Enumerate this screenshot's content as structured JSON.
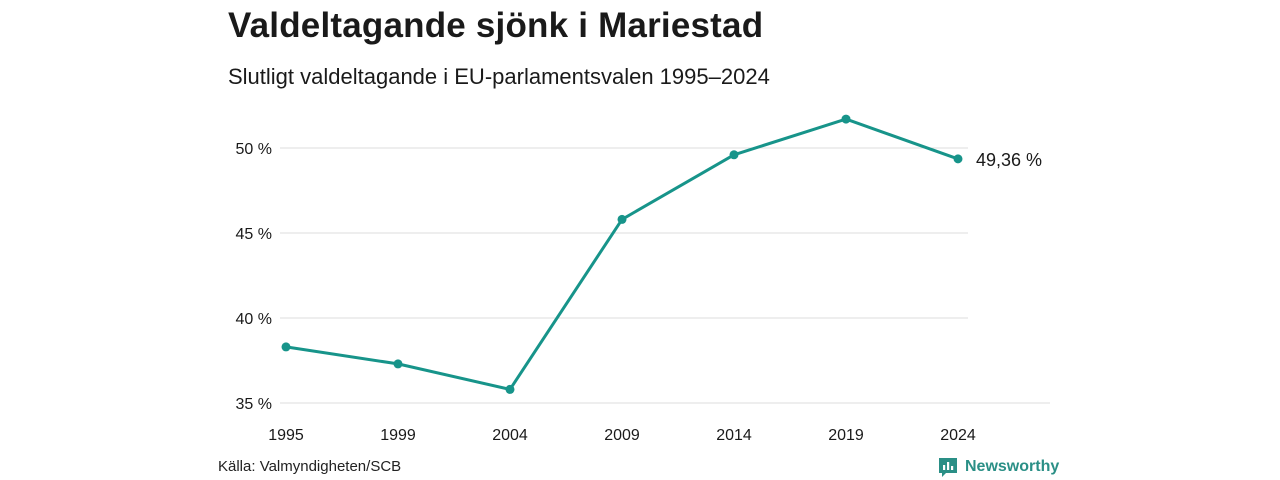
{
  "title": "Valdeltagande sjönk i Mariestad",
  "subtitle": "Slutligt valdeltagande i EU-parlamentsvalen 1995–2024",
  "source": "Källa: Valmyndigheten/SCB",
  "brand": {
    "name": "Newsworthy",
    "icon": "newsworthy-logo-icon"
  },
  "colors": {
    "line": "#17948a",
    "grid": "#dcdcdc",
    "text": "#1a1a1a",
    "brand": "#2a8f86"
  },
  "chart_data": {
    "type": "line",
    "title": "Valdeltagande sjönk i Mariestad",
    "subtitle": "Slutligt valdeltagande i EU-parlamentsvalen 1995–2024",
    "x": [
      "1995",
      "1999",
      "2004",
      "2009",
      "2014",
      "2019",
      "2024"
    ],
    "series": [
      {
        "values": [
          38.3,
          37.3,
          35.8,
          45.8,
          49.6,
          51.7,
          49.36
        ]
      }
    ],
    "ylim": [
      35,
      52
    ],
    "yticks": [
      35,
      40,
      45,
      50
    ],
    "ytick_labels": [
      "35 %",
      "40 %",
      "45 %",
      "50 %"
    ],
    "end_label": "49,36 %",
    "grid": "horizontal",
    "xlabel": "",
    "ylabel": ""
  }
}
